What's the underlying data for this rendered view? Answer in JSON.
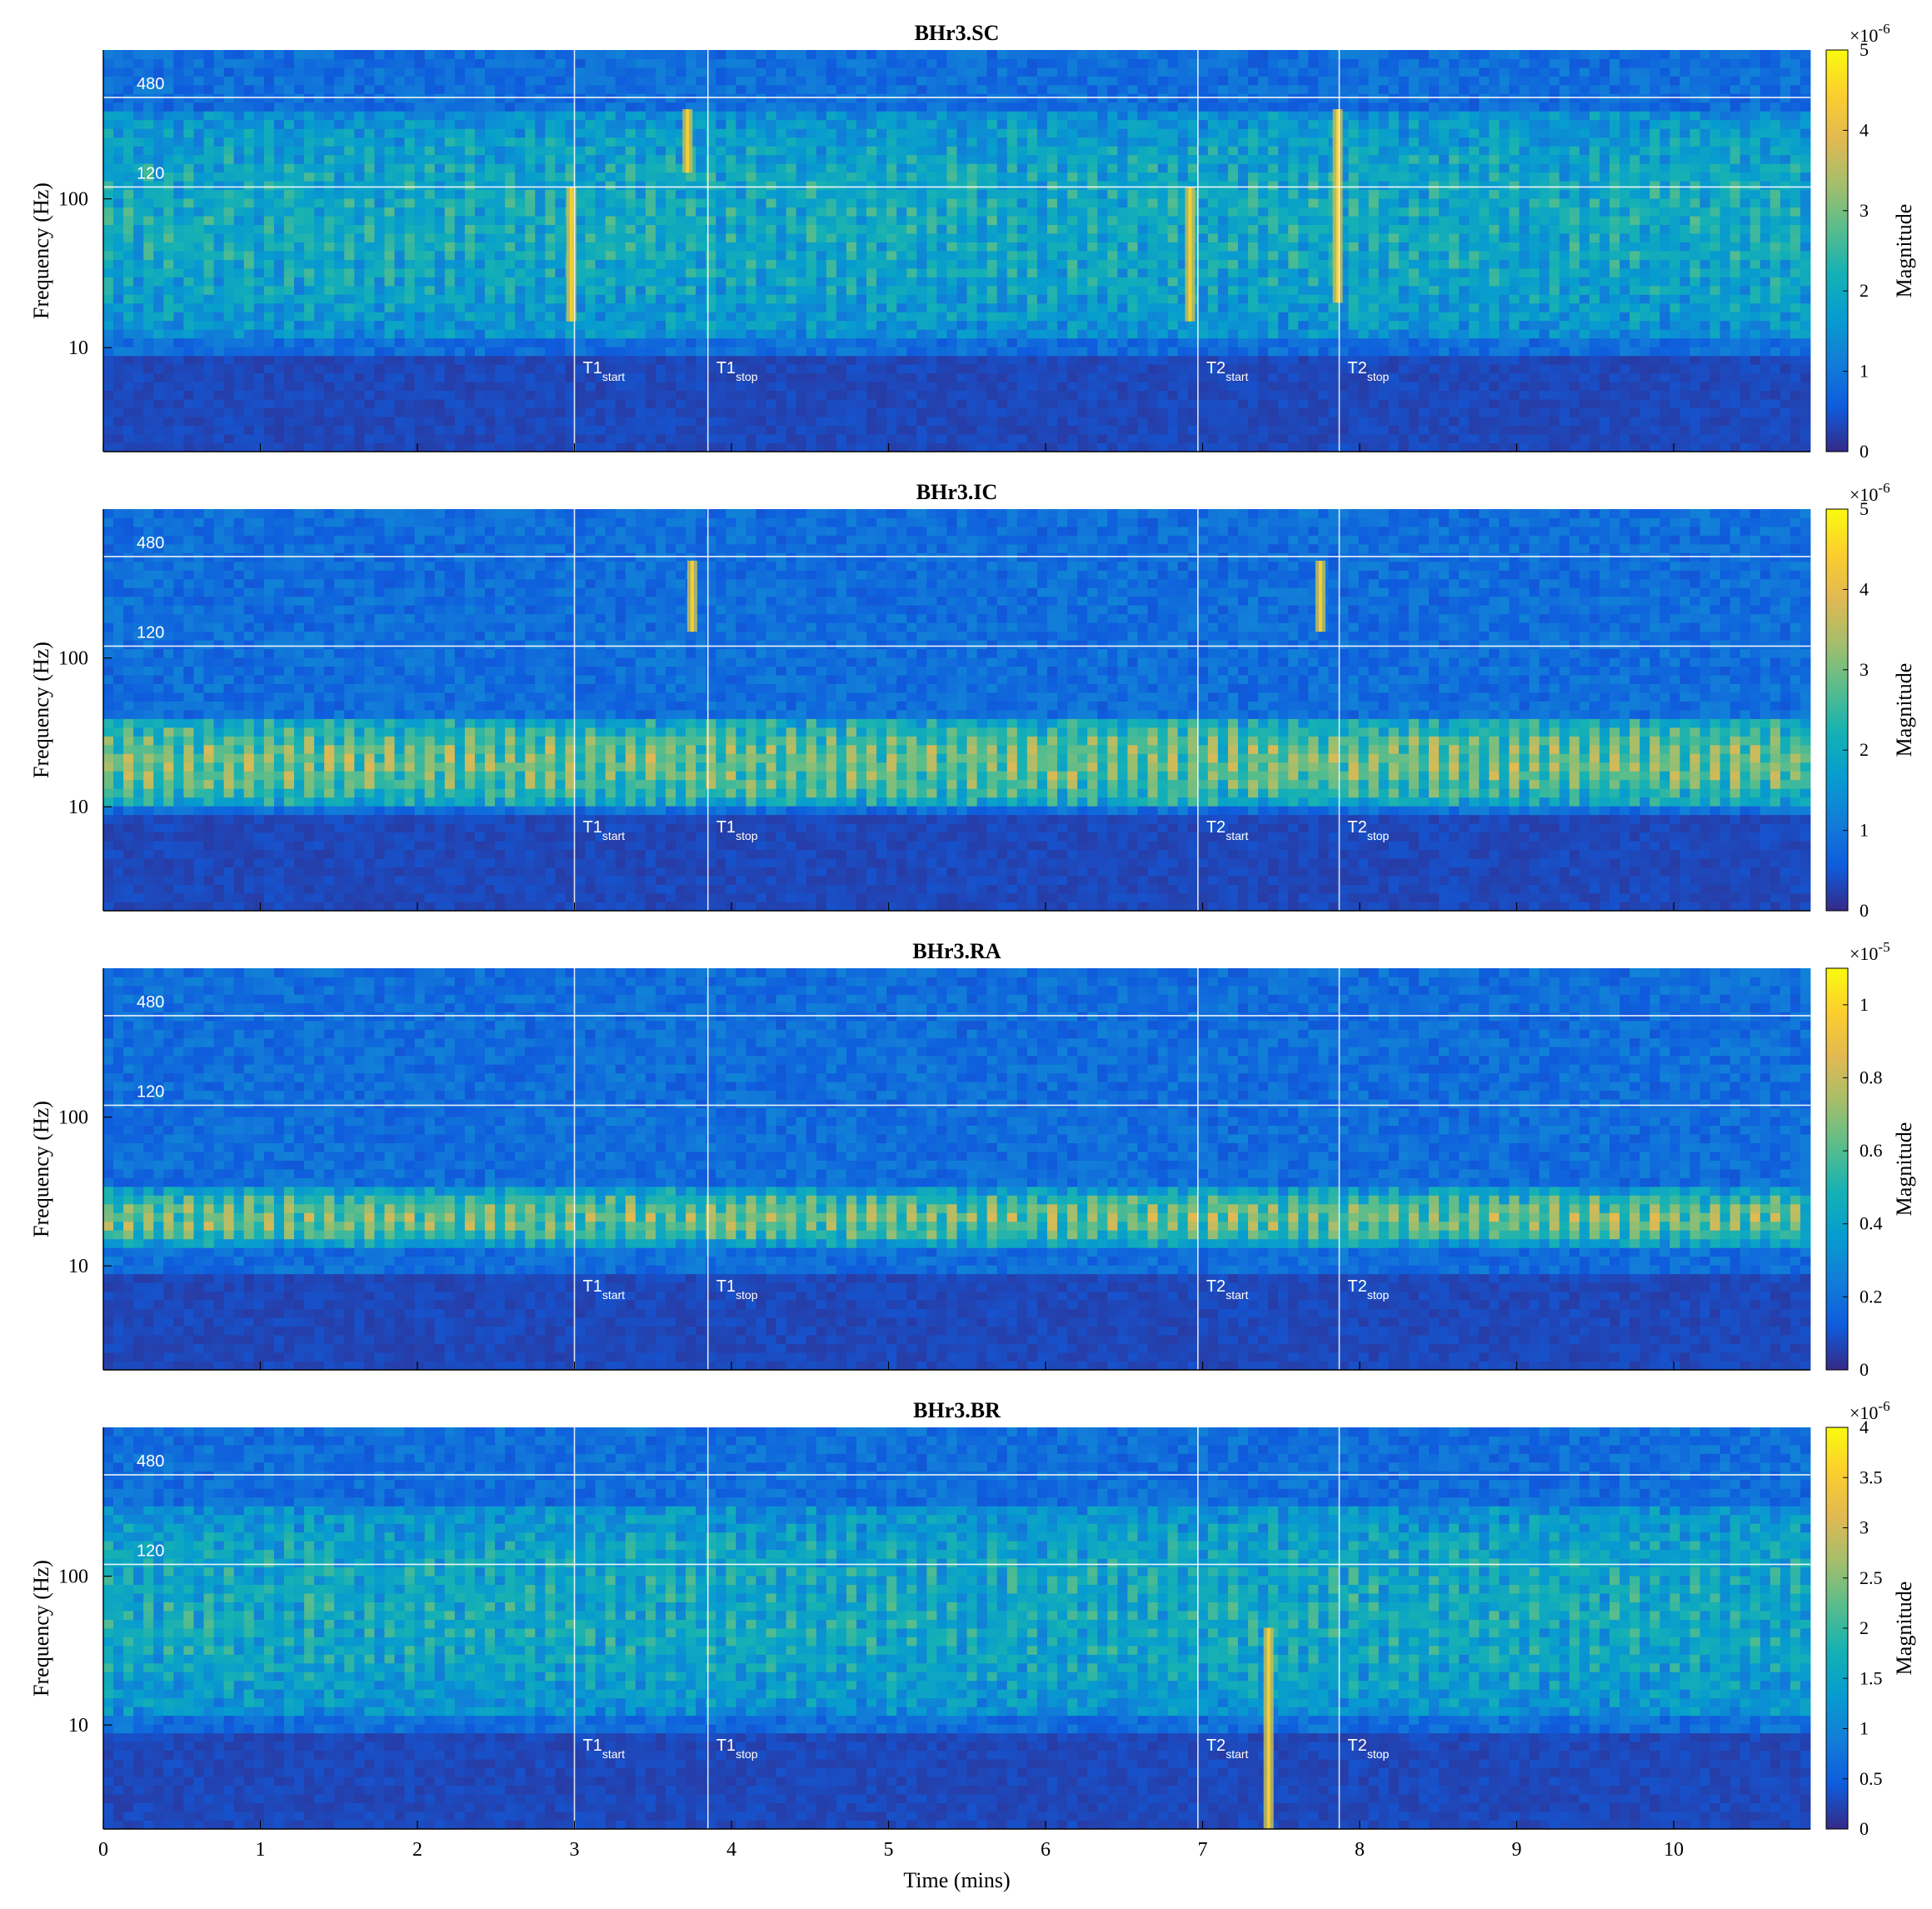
{
  "chart_data": [
    {
      "type": "heatmap",
      "title": "BHr3.SC",
      "xlabel": "",
      "ylabel": "Frequency (Hz)",
      "x_ticks": [
        "0",
        "1",
        "2",
        "3",
        "4",
        "5",
        "6",
        "7",
        "8",
        "9",
        "10"
      ],
      "y_ticks": [
        "10",
        "100"
      ],
      "y_scale": "log",
      "xlim": [
        0,
        10.87
      ],
      "ylim": [
        2,
        1000
      ],
      "reference_lines": [
        {
          "label": "480",
          "value": 480
        },
        {
          "label": "120",
          "value": 120
        }
      ],
      "event_markers": [
        {
          "base": "T1",
          "sub": "start",
          "time": 3.0
        },
        {
          "base": "T1",
          "sub": "stop",
          "time": 3.85
        },
        {
          "base": "T2",
          "sub": "start",
          "time": 6.97
        },
        {
          "base": "T2",
          "sub": "stop",
          "time": 7.87
        }
      ],
      "colorbar": {
        "label": "Magnitude",
        "exponent": "×10",
        "exponent_power": "-6",
        "range": [
          0,
          5
        ],
        "ticks": [
          "0",
          "1",
          "2",
          "3",
          "4",
          "5"
        ]
      },
      "energy_band_hz": [
        12,
        400
      ],
      "hot_spots": [
        {
          "time": 2.98,
          "f_low": 15,
          "f_high": 120
        },
        {
          "time": 3.72,
          "f_low": 150,
          "f_high": 400
        },
        {
          "time": 6.92,
          "f_low": 15,
          "f_high": 120
        },
        {
          "time": 7.86,
          "f_low": 20,
          "f_high": 400
        }
      ]
    },
    {
      "type": "heatmap",
      "title": "BHr3.IC",
      "xlabel": "",
      "ylabel": "Frequency (Hz)",
      "x_ticks": [
        "0",
        "1",
        "2",
        "3",
        "4",
        "5",
        "6",
        "7",
        "8",
        "9",
        "10"
      ],
      "y_ticks": [
        "10",
        "100"
      ],
      "y_scale": "log",
      "xlim": [
        0,
        10.87
      ],
      "ylim": [
        2,
        1000
      ],
      "reference_lines": [
        {
          "label": "480",
          "value": 480
        },
        {
          "label": "120",
          "value": 120
        }
      ],
      "event_markers": [
        {
          "base": "T1",
          "sub": "start",
          "time": 3.0
        },
        {
          "base": "T1",
          "sub": "stop",
          "time": 3.85
        },
        {
          "base": "T2",
          "sub": "start",
          "time": 6.97
        },
        {
          "base": "T2",
          "sub": "stop",
          "time": 7.87
        }
      ],
      "colorbar": {
        "label": "Magnitude",
        "exponent": "×10",
        "exponent_power": "-6",
        "range": [
          0,
          5
        ],
        "ticks": [
          "0",
          "1",
          "2",
          "3",
          "4",
          "5"
        ]
      },
      "energy_band_hz": [
        10,
        40
      ],
      "hot_spots": [
        {
          "time": 3.75,
          "f_low": 150,
          "f_high": 450
        },
        {
          "time": 7.75,
          "f_low": 150,
          "f_high": 450
        }
      ]
    },
    {
      "type": "heatmap",
      "title": "BHr3.RA",
      "xlabel": "",
      "ylabel": "Frequency (Hz)",
      "x_ticks": [
        "0",
        "1",
        "2",
        "3",
        "4",
        "5",
        "6",
        "7",
        "8",
        "9",
        "10"
      ],
      "y_ticks": [
        "10",
        "100"
      ],
      "y_scale": "log",
      "xlim": [
        0,
        10.87
      ],
      "ylim": [
        2,
        1000
      ],
      "reference_lines": [
        {
          "label": "480",
          "value": 480
        },
        {
          "label": "120",
          "value": 120
        }
      ],
      "event_markers": [
        {
          "base": "T1",
          "sub": "start",
          "time": 3.0
        },
        {
          "base": "T1",
          "sub": "stop",
          "time": 3.85
        },
        {
          "base": "T2",
          "sub": "start",
          "time": 6.97
        },
        {
          "base": "T2",
          "sub": "stop",
          "time": 7.87
        }
      ],
      "colorbar": {
        "label": "Magnitude",
        "exponent": "×10",
        "exponent_power": "-5",
        "range": [
          0,
          1.1
        ],
        "ticks": [
          "0",
          "0.2",
          "0.4",
          "0.6",
          "0.8",
          "1"
        ]
      },
      "energy_band_hz": [
        14,
        32
      ],
      "hot_spots": []
    },
    {
      "type": "heatmap",
      "title": "BHr3.BR",
      "xlabel": "Time (mins)",
      "ylabel": "Frequency (Hz)",
      "x_ticks": [
        "0",
        "1",
        "2",
        "3",
        "4",
        "5",
        "6",
        "7",
        "8",
        "9",
        "10"
      ],
      "y_ticks": [
        "10",
        "100"
      ],
      "y_scale": "log",
      "xlim": [
        0,
        10.87
      ],
      "ylim": [
        2,
        1000
      ],
      "reference_lines": [
        {
          "label": "480",
          "value": 480
        },
        {
          "label": "120",
          "value": 120
        }
      ],
      "event_markers": [
        {
          "base": "T1",
          "sub": "start",
          "time": 3.0
        },
        {
          "base": "T1",
          "sub": "stop",
          "time": 3.85
        },
        {
          "base": "T2",
          "sub": "start",
          "time": 6.97
        },
        {
          "base": "T2",
          "sub": "stop",
          "time": 7.87
        }
      ],
      "colorbar": {
        "label": "Magnitude",
        "exponent": "×10",
        "exponent_power": "-6",
        "range": [
          0,
          4
        ],
        "ticks": [
          "0",
          "0.5",
          "1",
          "1.5",
          "2",
          "2.5",
          "3",
          "3.5",
          "4"
        ]
      },
      "energy_band_hz": [
        12,
        300
      ],
      "hot_spots": [
        {
          "time": 7.42,
          "f_low": 2,
          "f_high": 45
        }
      ]
    }
  ]
}
